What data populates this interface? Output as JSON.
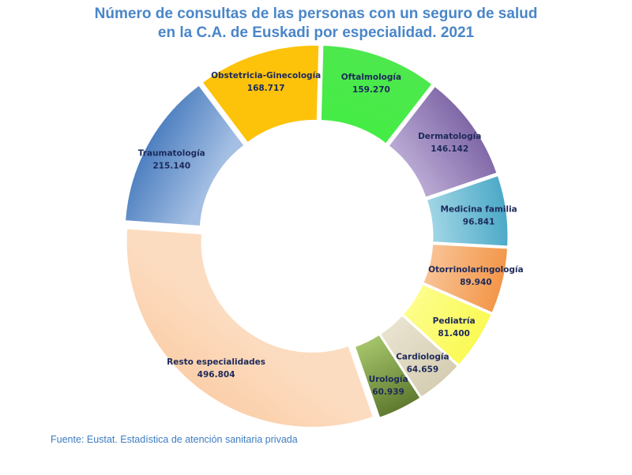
{
  "chart_data": {
    "type": "pie",
    "title_lines": [
      "Número de consultas de las personas con un seguro de salud",
      "en la C.A. de Euskadi por especialidad. 2021"
    ],
    "source": "Fuente: Eustat. Estadística de atención sanitaria privada",
    "slices": [
      {
        "name": "Oftalmología",
        "value_label": "159.270",
        "value": 159270,
        "color": "#4de84d",
        "color2": "#46ec46"
      },
      {
        "name": "Dermatología",
        "value_label": "146.142",
        "value": 146142,
        "color": "#7f67a7",
        "color2": "#b8a7d2"
      },
      {
        "name": "Medicina familia",
        "value_label": "96.841",
        "value": 96841,
        "color": "#4ba9c7",
        "color2": "#9fd5e5"
      },
      {
        "name": "Otorrinolaringología",
        "value_label": "89.940",
        "value": 89940,
        "color": "#f39648",
        "color2": "#f8c294"
      },
      {
        "name": "Pediatría",
        "value_label": "81.400",
        "value": 81400,
        "color": "#fafa55",
        "color2": "#fdfd8a"
      },
      {
        "name": "Cardiología",
        "value_label": "64.659",
        "value": 64659,
        "color": "#d6ceb3",
        "color2": "#e8e2cf"
      },
      {
        "name": "Urología",
        "value_label": "60.939",
        "value": 60939,
        "color": "#5f7a2f",
        "color2": "#a4c46a"
      },
      {
        "name": "Resto especialidades",
        "value_label": "496.804",
        "value": 496804,
        "color": "#fbcfaa",
        "color2": "#fcdcc0"
      },
      {
        "name": "Traumatología",
        "value_label": "215.140",
        "value": 215140,
        "color": "#4d7fc0",
        "color2": "#a4bfe3"
      },
      {
        "name": "Obstetricia-Ginecología",
        "value_label": "168.717",
        "value": 168717,
        "color": "#fdc20a",
        "color2": "#fdc20a"
      }
    ]
  }
}
